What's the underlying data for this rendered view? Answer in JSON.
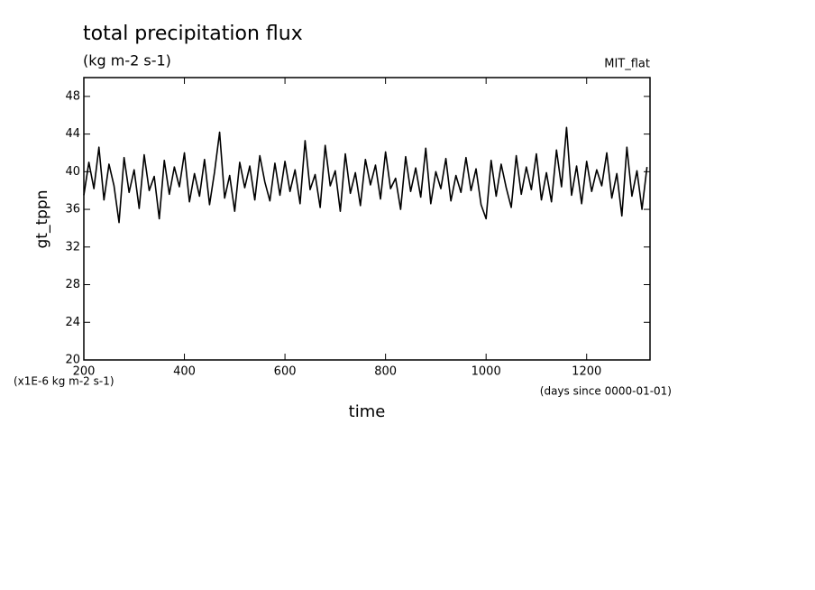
{
  "chart_data": {
    "type": "line",
    "title": "total precipitation flux",
    "subtitle": "(kg m-2 s-1)",
    "annotation": "MIT_flat",
    "y_label": "gt_tppn",
    "x_label": "time",
    "y_units": "(x1E-6 kg m-2 s-1)",
    "x_units": "(days since 0000-01-01)",
    "x": [
      200,
      210,
      220,
      230,
      240,
      250,
      260,
      270,
      280,
      290,
      300,
      310,
      320,
      330,
      340,
      350,
      360,
      370,
      380,
      390,
      400,
      410,
      420,
      430,
      440,
      450,
      460,
      470,
      480,
      490,
      500,
      510,
      520,
      530,
      540,
      550,
      560,
      570,
      580,
      590,
      600,
      610,
      620,
      630,
      640,
      650,
      660,
      670,
      680,
      690,
      700,
      710,
      720,
      730,
      740,
      750,
      760,
      770,
      780,
      790,
      800,
      810,
      820,
      830,
      840,
      850,
      860,
      870,
      880,
      890,
      900,
      910,
      920,
      930,
      940,
      950,
      960,
      970,
      980,
      990,
      1000,
      1010,
      1020,
      1030,
      1040,
      1050,
      1060,
      1070,
      1080,
      1090,
      1100,
      1110,
      1120,
      1130,
      1140,
      1150,
      1160,
      1170,
      1180,
      1190,
      1200,
      1210,
      1220,
      1230,
      1240,
      1250,
      1260,
      1270,
      1280,
      1290,
      1300,
      1310,
      1320
    ],
    "series": [
      {
        "name": "gt_tppn",
        "color": "#000000",
        "values": [
          37.5,
          41.0,
          38.2,
          42.6,
          37.0,
          40.8,
          38.5,
          34.6,
          41.5,
          37.8,
          40.2,
          36.1,
          41.8,
          38.0,
          39.5,
          35.0,
          41.2,
          37.6,
          40.5,
          38.4,
          42.0,
          36.8,
          39.8,
          37.4,
          41.3,
          36.5,
          40.0,
          44.2,
          37.2,
          39.6,
          35.8,
          41.0,
          38.3,
          40.6,
          37.0,
          41.7,
          38.9,
          36.9,
          40.9,
          37.5,
          41.1,
          37.9,
          40.2,
          36.6,
          43.3,
          38.1,
          39.7,
          36.2,
          42.8,
          38.5,
          40.1,
          35.8,
          41.9,
          37.7,
          39.9,
          36.4,
          41.3,
          38.6,
          40.7,
          37.1,
          42.1,
          38.2,
          39.3,
          36.0,
          41.6,
          37.9,
          40.4,
          37.3,
          42.5,
          36.6,
          40.0,
          38.2,
          41.4,
          36.9,
          39.6,
          37.8,
          41.5,
          38.0,
          40.3,
          36.5,
          35.0,
          41.2,
          37.4,
          40.8,
          38.3,
          36.2,
          41.7,
          37.6,
          40.5,
          38.1,
          41.9,
          37.0,
          39.9,
          36.8,
          42.3,
          38.4,
          44.7,
          37.5,
          40.6,
          36.6,
          41.1,
          37.9,
          40.2,
          38.5,
          42.0,
          37.2,
          39.8,
          35.3,
          42.6,
          37.4,
          40.1,
          36.0,
          40.5
        ]
      }
    ],
    "xlim": [
      200,
      1326
    ],
    "ylim": [
      20,
      50
    ],
    "xticks": [
      200,
      400,
      600,
      800,
      1000,
      1200
    ],
    "yticks": [
      20,
      24,
      28,
      32,
      36,
      40,
      44,
      48
    ]
  }
}
